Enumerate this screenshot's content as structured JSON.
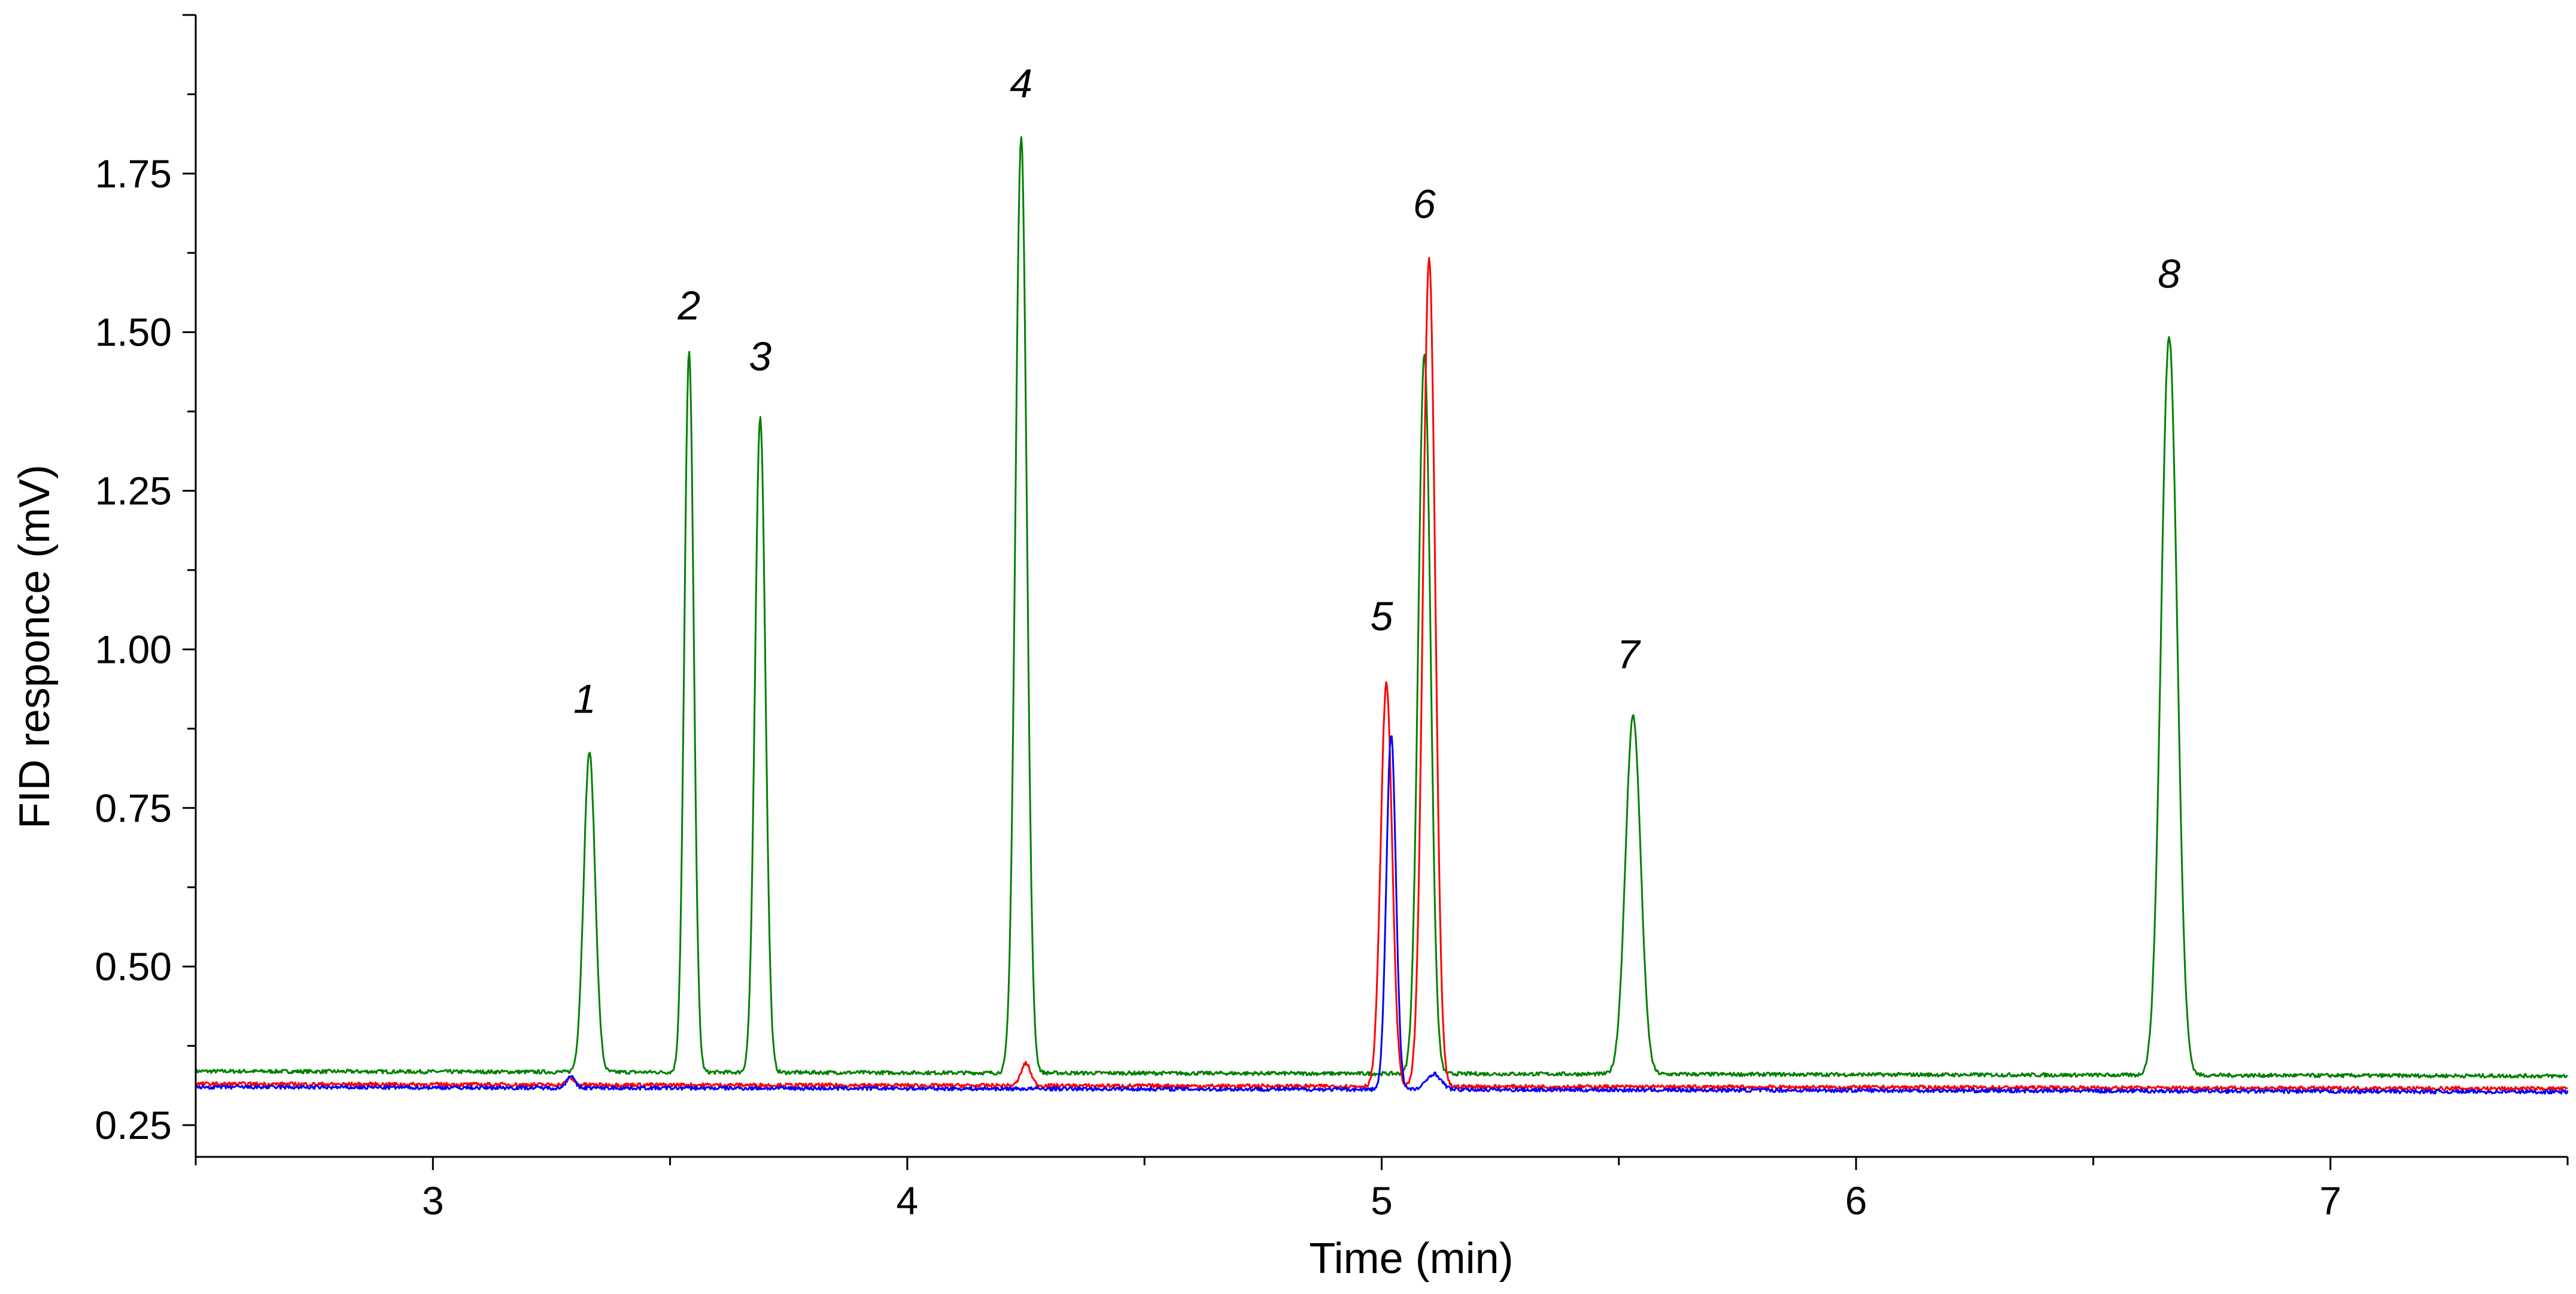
{
  "chart_data": {
    "type": "line",
    "title": "",
    "xlabel": "Time (min)",
    "ylabel": "FID responce (mV)",
    "xlim": [
      2.5,
      7.5
    ],
    "ylim": [
      0.2,
      2.0
    ],
    "x_ticks": [
      3,
      4,
      5,
      6,
      7
    ],
    "x_tick_labels": [
      "3",
      "4",
      "5",
      "6",
      "7"
    ],
    "y_ticks": [
      0.25,
      0.5,
      0.75,
      1.0,
      1.25,
      1.5,
      1.75
    ],
    "y_tick_labels": [
      "0.25",
      "0.50",
      "0.75",
      "1.00",
      "1.25",
      "1.50",
      "1.75"
    ],
    "grid": false,
    "legend": "none",
    "series": [
      {
        "color": "#008000",
        "baseline": 0.335,
        "peaks": [
          {
            "x": 3.33,
            "y": 0.84,
            "width": 0.012
          },
          {
            "x": 3.54,
            "y": 1.47,
            "width": 0.01
          },
          {
            "x": 3.69,
            "y": 1.37,
            "width": 0.011
          },
          {
            "x": 4.24,
            "y": 1.81,
            "width": 0.012
          },
          {
            "x": 5.09,
            "y": 1.47,
            "width": 0.013
          },
          {
            "x": 5.53,
            "y": 0.9,
            "width": 0.016
          },
          {
            "x": 6.66,
            "y": 1.5,
            "width": 0.017
          }
        ]
      },
      {
        "color": "#ff0000",
        "baseline": 0.315,
        "peaks": [
          {
            "x": 3.29,
            "y": 0.325,
            "width": 0.008
          },
          {
            "x": 4.25,
            "y": 0.35,
            "width": 0.01
          },
          {
            "x": 5.01,
            "y": 0.95,
            "width": 0.012
          },
          {
            "x": 5.1,
            "y": 1.62,
            "width": 0.013
          }
        ]
      },
      {
        "color": "#0000ff",
        "baseline": 0.31,
        "peaks": [
          {
            "x": 3.29,
            "y": 0.33,
            "width": 0.008
          },
          {
            "x": 5.02,
            "y": 0.87,
            "width": 0.01
          },
          {
            "x": 5.11,
            "y": 0.335,
            "width": 0.015
          }
        ]
      }
    ],
    "annotations": [
      {
        "text": "1",
        "x": 3.32,
        "y": 0.9
      },
      {
        "text": "2",
        "x": 3.54,
        "y": 1.52
      },
      {
        "text": "3",
        "x": 3.69,
        "y": 1.44
      },
      {
        "text": "4",
        "x": 4.24,
        "y": 1.87
      },
      {
        "text": "5",
        "x": 5.0,
        "y": 1.03
      },
      {
        "text": "6",
        "x": 5.09,
        "y": 1.68
      },
      {
        "text": "7",
        "x": 5.52,
        "y": 0.97
      },
      {
        "text": "8",
        "x": 6.66,
        "y": 1.57
      }
    ]
  }
}
